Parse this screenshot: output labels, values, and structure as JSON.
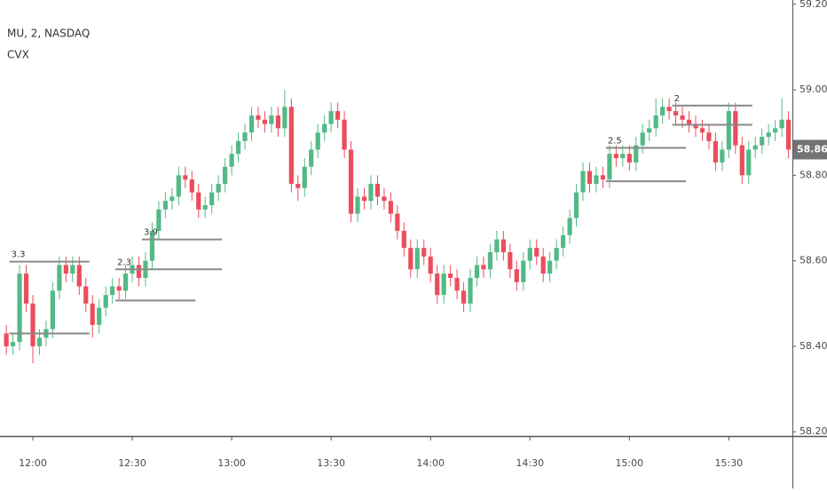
{
  "chart_data": {
    "type": "candlestick",
    "title": "MU, 2, NASDAQ",
    "subtitle": "CVX",
    "categories": [
      null,
      null,
      null,
      null,
      "12:00",
      null,
      null,
      null,
      null,
      null,
      null,
      null,
      null,
      null,
      null,
      null,
      null,
      null,
      null,
      "12:30",
      null,
      null,
      null,
      null,
      null,
      null,
      null,
      null,
      null,
      null,
      null,
      null,
      null,
      null,
      "13:00",
      null,
      null,
      null,
      null,
      null,
      null,
      null,
      null,
      null,
      null,
      null,
      null,
      null,
      null,
      "13:30",
      null,
      null,
      null,
      null,
      null,
      null,
      null,
      null,
      null,
      null,
      null,
      null,
      null,
      null,
      "14:00",
      null,
      null,
      null,
      null,
      null,
      null,
      null,
      null,
      null,
      null,
      null,
      null,
      null,
      null,
      "14:30",
      null,
      null,
      null,
      null,
      null,
      null,
      null,
      null,
      null,
      null,
      null,
      null,
      null,
      null,
      "15:00",
      null,
      null,
      null,
      null,
      null,
      null,
      null,
      null,
      null,
      null,
      null,
      null,
      null,
      null,
      "15:30",
      null,
      null,
      null,
      null,
      null,
      null,
      null,
      null,
      null
    ],
    "open": [
      58.43,
      58.4,
      58.41,
      58.57,
      58.5,
      58.4,
      58.42,
      58.44,
      58.53,
      58.59,
      58.57,
      58.59,
      58.54,
      58.5,
      58.45,
      58.49,
      58.52,
      58.54,
      58.53,
      58.57,
      58.59,
      58.56,
      58.6,
      58.67,
      58.72,
      58.74,
      58.75,
      58.8,
      58.79,
      58.76,
      58.72,
      58.73,
      58.76,
      58.78,
      58.82,
      58.85,
      58.88,
      58.9,
      58.94,
      58.93,
      58.92,
      58.94,
      58.91,
      58.96,
      58.78,
      58.77,
      58.82,
      58.86,
      58.9,
      58.92,
      58.95,
      58.93,
      58.86,
      58.71,
      58.75,
      58.74,
      58.78,
      58.75,
      58.74,
      58.71,
      58.67,
      58.63,
      58.58,
      58.63,
      58.61,
      58.57,
      58.52,
      58.57,
      58.56,
      58.53,
      58.5,
      58.56,
      58.59,
      58.58,
      58.62,
      58.65,
      58.62,
      58.58,
      58.55,
      58.6,
      58.63,
      58.61,
      58.57,
      58.6,
      58.63,
      58.66,
      58.7,
      58.76,
      58.81,
      58.78,
      58.8,
      58.79,
      58.85,
      58.84,
      58.85,
      58.83,
      58.87,
      58.9,
      58.91,
      58.94,
      58.96,
      58.95,
      58.94,
      58.93,
      58.92,
      58.91,
      58.9,
      58.88,
      58.83,
      58.86,
      58.95,
      58.87,
      58.8,
      58.86,
      58.87,
      58.89,
      58.9,
      58.91,
      58.93
    ],
    "high": [
      58.45,
      58.43,
      58.59,
      58.59,
      58.52,
      58.44,
      58.46,
      58.55,
      58.61,
      58.61,
      58.61,
      58.61,
      58.56,
      58.52,
      58.51,
      58.54,
      58.56,
      58.56,
      58.59,
      58.61,
      58.61,
      58.62,
      58.69,
      58.74,
      58.76,
      58.77,
      58.82,
      58.82,
      58.81,
      58.78,
      58.75,
      58.78,
      58.8,
      58.84,
      58.87,
      58.9,
      58.92,
      58.96,
      58.96,
      58.95,
      58.96,
      58.96,
      59.0,
      58.98,
      58.8,
      58.84,
      58.88,
      58.92,
      58.94,
      58.97,
      58.97,
      58.95,
      58.88,
      58.77,
      58.77,
      58.8,
      58.8,
      58.77,
      58.76,
      58.73,
      58.69,
      58.65,
      58.65,
      58.65,
      58.63,
      58.59,
      58.59,
      58.59,
      58.58,
      58.55,
      58.58,
      58.61,
      58.61,
      58.64,
      58.67,
      58.67,
      58.64,
      58.6,
      58.62,
      58.65,
      58.65,
      58.63,
      58.62,
      58.65,
      58.68,
      58.72,
      58.78,
      58.83,
      58.83,
      58.82,
      58.82,
      58.87,
      58.87,
      58.87,
      58.87,
      58.89,
      58.92,
      58.93,
      58.98,
      58.98,
      58.98,
      58.97,
      58.96,
      58.95,
      58.94,
      58.93,
      58.92,
      58.9,
      58.88,
      58.97,
      58.97,
      58.89,
      58.88,
      58.89,
      58.91,
      58.92,
      58.93,
      58.98,
      58.95
    ],
    "low": [
      58.38,
      58.38,
      58.39,
      58.48,
      58.36,
      58.38,
      58.4,
      58.42,
      58.51,
      58.55,
      58.55,
      58.52,
      58.48,
      58.42,
      58.43,
      58.47,
      58.5,
      58.51,
      58.51,
      58.55,
      58.54,
      58.54,
      58.58,
      58.65,
      58.7,
      58.72,
      58.73,
      58.77,
      58.74,
      58.7,
      58.7,
      58.71,
      58.74,
      58.76,
      58.8,
      58.83,
      58.86,
      58.88,
      58.91,
      58.9,
      58.9,
      58.89,
      58.89,
      58.76,
      58.74,
      58.75,
      58.8,
      58.84,
      58.88,
      58.9,
      58.91,
      58.84,
      58.69,
      58.69,
      58.72,
      58.72,
      58.73,
      58.72,
      58.69,
      58.65,
      58.61,
      58.56,
      58.56,
      58.59,
      58.55,
      58.5,
      58.5,
      58.54,
      58.51,
      58.48,
      58.48,
      58.54,
      58.56,
      58.56,
      58.6,
      58.6,
      58.56,
      58.53,
      58.53,
      58.58,
      58.59,
      58.55,
      58.55,
      58.58,
      58.61,
      58.64,
      58.68,
      58.74,
      58.76,
      58.76,
      58.77,
      58.77,
      58.82,
      58.82,
      58.81,
      58.81,
      58.85,
      58.88,
      58.89,
      58.92,
      58.93,
      58.92,
      58.91,
      58.9,
      58.89,
      58.88,
      58.86,
      58.81,
      58.81,
      58.84,
      58.85,
      58.78,
      58.78,
      58.84,
      58.85,
      58.87,
      58.88,
      58.89,
      58.84
    ],
    "close": [
      58.4,
      58.41,
      58.57,
      58.5,
      58.4,
      58.42,
      58.44,
      58.53,
      58.59,
      58.57,
      58.59,
      58.54,
      58.5,
      58.45,
      58.49,
      58.52,
      58.54,
      58.53,
      58.57,
      58.59,
      58.56,
      58.6,
      58.67,
      58.72,
      58.74,
      58.75,
      58.8,
      58.79,
      58.76,
      58.72,
      58.73,
      58.76,
      58.78,
      58.82,
      58.85,
      58.88,
      58.9,
      58.94,
      58.93,
      58.92,
      58.94,
      58.91,
      58.96,
      58.78,
      58.77,
      58.82,
      58.86,
      58.9,
      58.92,
      58.95,
      58.93,
      58.86,
      58.71,
      58.75,
      58.74,
      58.78,
      58.75,
      58.74,
      58.71,
      58.67,
      58.63,
      58.58,
      58.63,
      58.61,
      58.57,
      58.52,
      58.57,
      58.56,
      58.53,
      58.5,
      58.56,
      58.59,
      58.58,
      58.62,
      58.65,
      58.62,
      58.58,
      58.55,
      58.6,
      58.63,
      58.61,
      58.57,
      58.6,
      58.63,
      58.66,
      58.7,
      58.76,
      58.81,
      58.78,
      58.8,
      58.79,
      58.85,
      58.84,
      58.85,
      58.83,
      58.87,
      58.9,
      58.91,
      58.94,
      58.96,
      58.95,
      58.94,
      58.93,
      58.92,
      58.91,
      58.9,
      58.88,
      58.83,
      58.86,
      58.95,
      58.87,
      58.8,
      58.86,
      58.87,
      58.89,
      58.9,
      58.91,
      58.93,
      58.86
    ],
    "up_color": "#53b987",
    "down_color": "#eb4d5c",
    "ylim": [
      58.19,
      59.21
    ],
    "yticks": [
      {
        "value": 58.2,
        "label": "58.20"
      },
      {
        "value": 58.4,
        "label": "58.40"
      },
      {
        "value": 58.6,
        "label": "58.60"
      },
      {
        "value": 58.8,
        "label": "58.80"
      },
      {
        "value": 59,
        "label": "59.00"
      },
      {
        "value": 59.2,
        "label": "59.20"
      }
    ],
    "grid": false,
    "last_price": 58.86,
    "levels": [
      {
        "label": "3.3",
        "price": 58.598,
        "start": 1,
        "end": 12
      },
      {
        "price": 58.43,
        "start": 1,
        "end": 12
      },
      {
        "label": "2.3",
        "price": 58.58,
        "start": 17,
        "end": 32
      },
      {
        "price": 58.507,
        "start": 17,
        "end": 28
      },
      {
        "label": "3.9",
        "price": 58.65,
        "start": 21,
        "end": 32
      },
      {
        "label": "2.5",
        "price": 58.864,
        "start": 91,
        "end": 102
      },
      {
        "price": 58.786,
        "start": 91,
        "end": 102
      },
      {
        "label": "2",
        "price": 58.963,
        "start": 101,
        "end": 112
      },
      {
        "price": 58.918,
        "start": 101,
        "end": 112
      }
    ]
  }
}
